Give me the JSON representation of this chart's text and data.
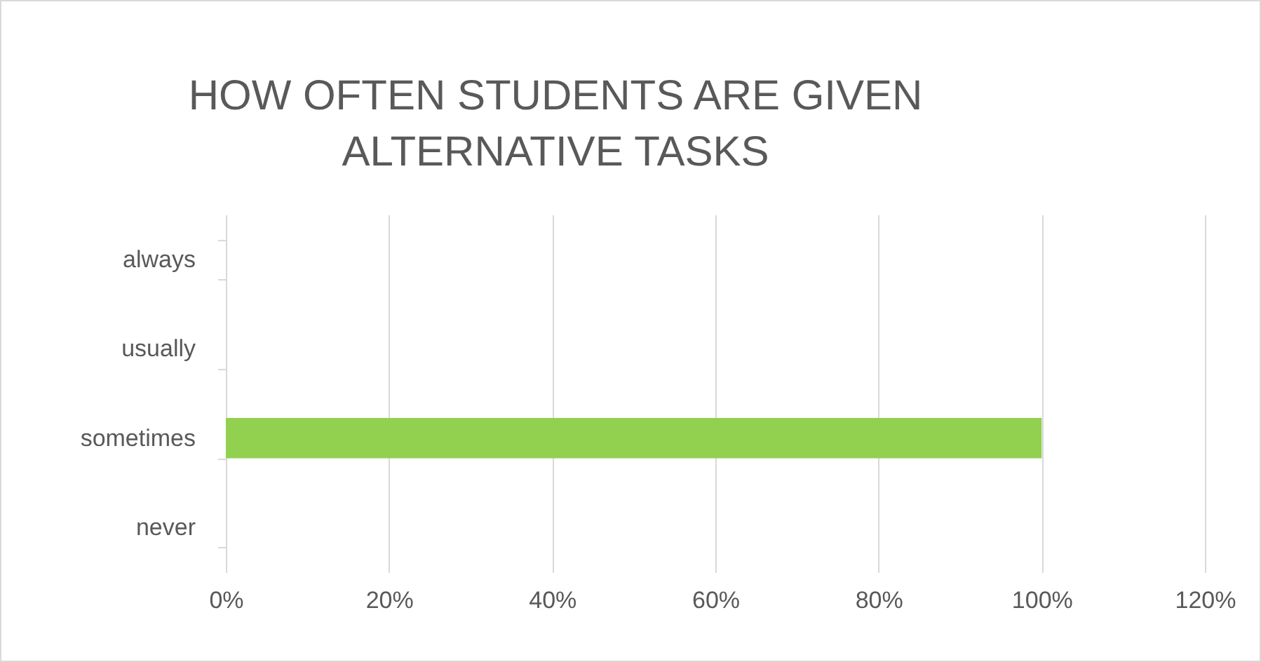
{
  "chart_data": {
    "type": "bar",
    "orientation": "horizontal",
    "title": "HOW OFTEN STUDENTS ARE GIVEN ALTERNATIVE TASKS",
    "categories": [
      "always",
      "usually",
      "sometimes",
      "never"
    ],
    "values": [
      0,
      0,
      100,
      0
    ],
    "color": "#92d050",
    "xlim": [
      0,
      120
    ],
    "xticks": [
      {
        "value": 0,
        "label": "0%"
      },
      {
        "value": 20,
        "label": "20%"
      },
      {
        "value": 40,
        "label": "40%"
      },
      {
        "value": 60,
        "label": "60%"
      },
      {
        "value": 80,
        "label": "80%"
      },
      {
        "value": 100,
        "label": "100%"
      },
      {
        "value": 120,
        "label": "120%"
      }
    ],
    "grid": "x"
  }
}
